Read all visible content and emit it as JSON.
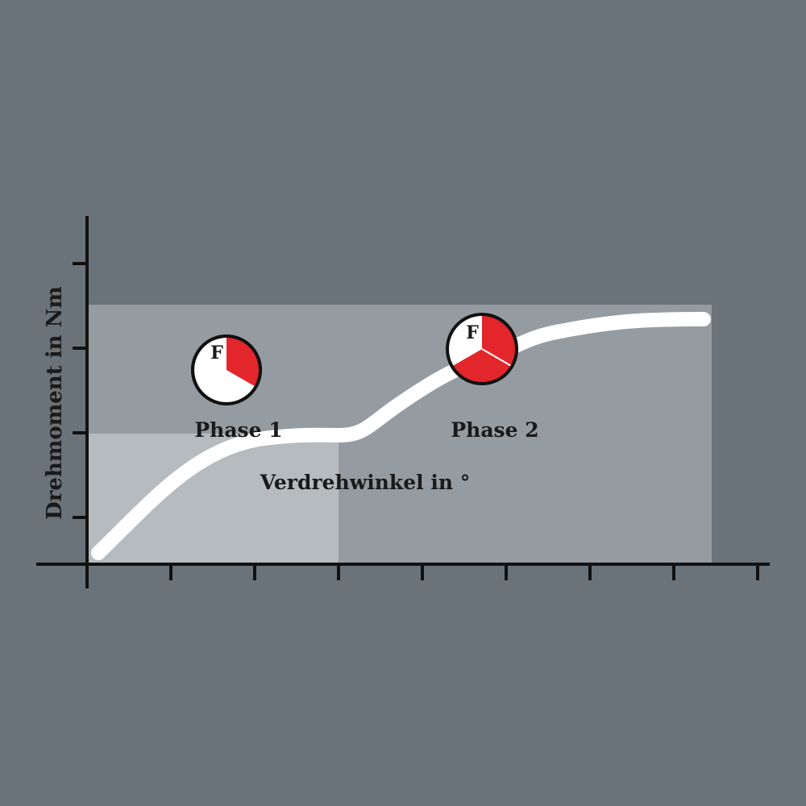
{
  "diagram": {
    "y_axis_label": "Drehmoment in Nm",
    "x_axis_label": "Verdrehwinkel in °",
    "phases": [
      {
        "label": "Phase 1",
        "icon_letter": "F",
        "red_fraction": 0.3333
      },
      {
        "label": "Phase 2",
        "icon_letter": "F",
        "red_fraction": 0.6667
      }
    ],
    "colors": {
      "background": "#6b737a",
      "zone_phase2": "#959ca1",
      "zone_phase1": "#b6bbbf",
      "curve": "#ffffff",
      "indicator_red": "#e3262b",
      "axis": "#111111"
    }
  }
}
